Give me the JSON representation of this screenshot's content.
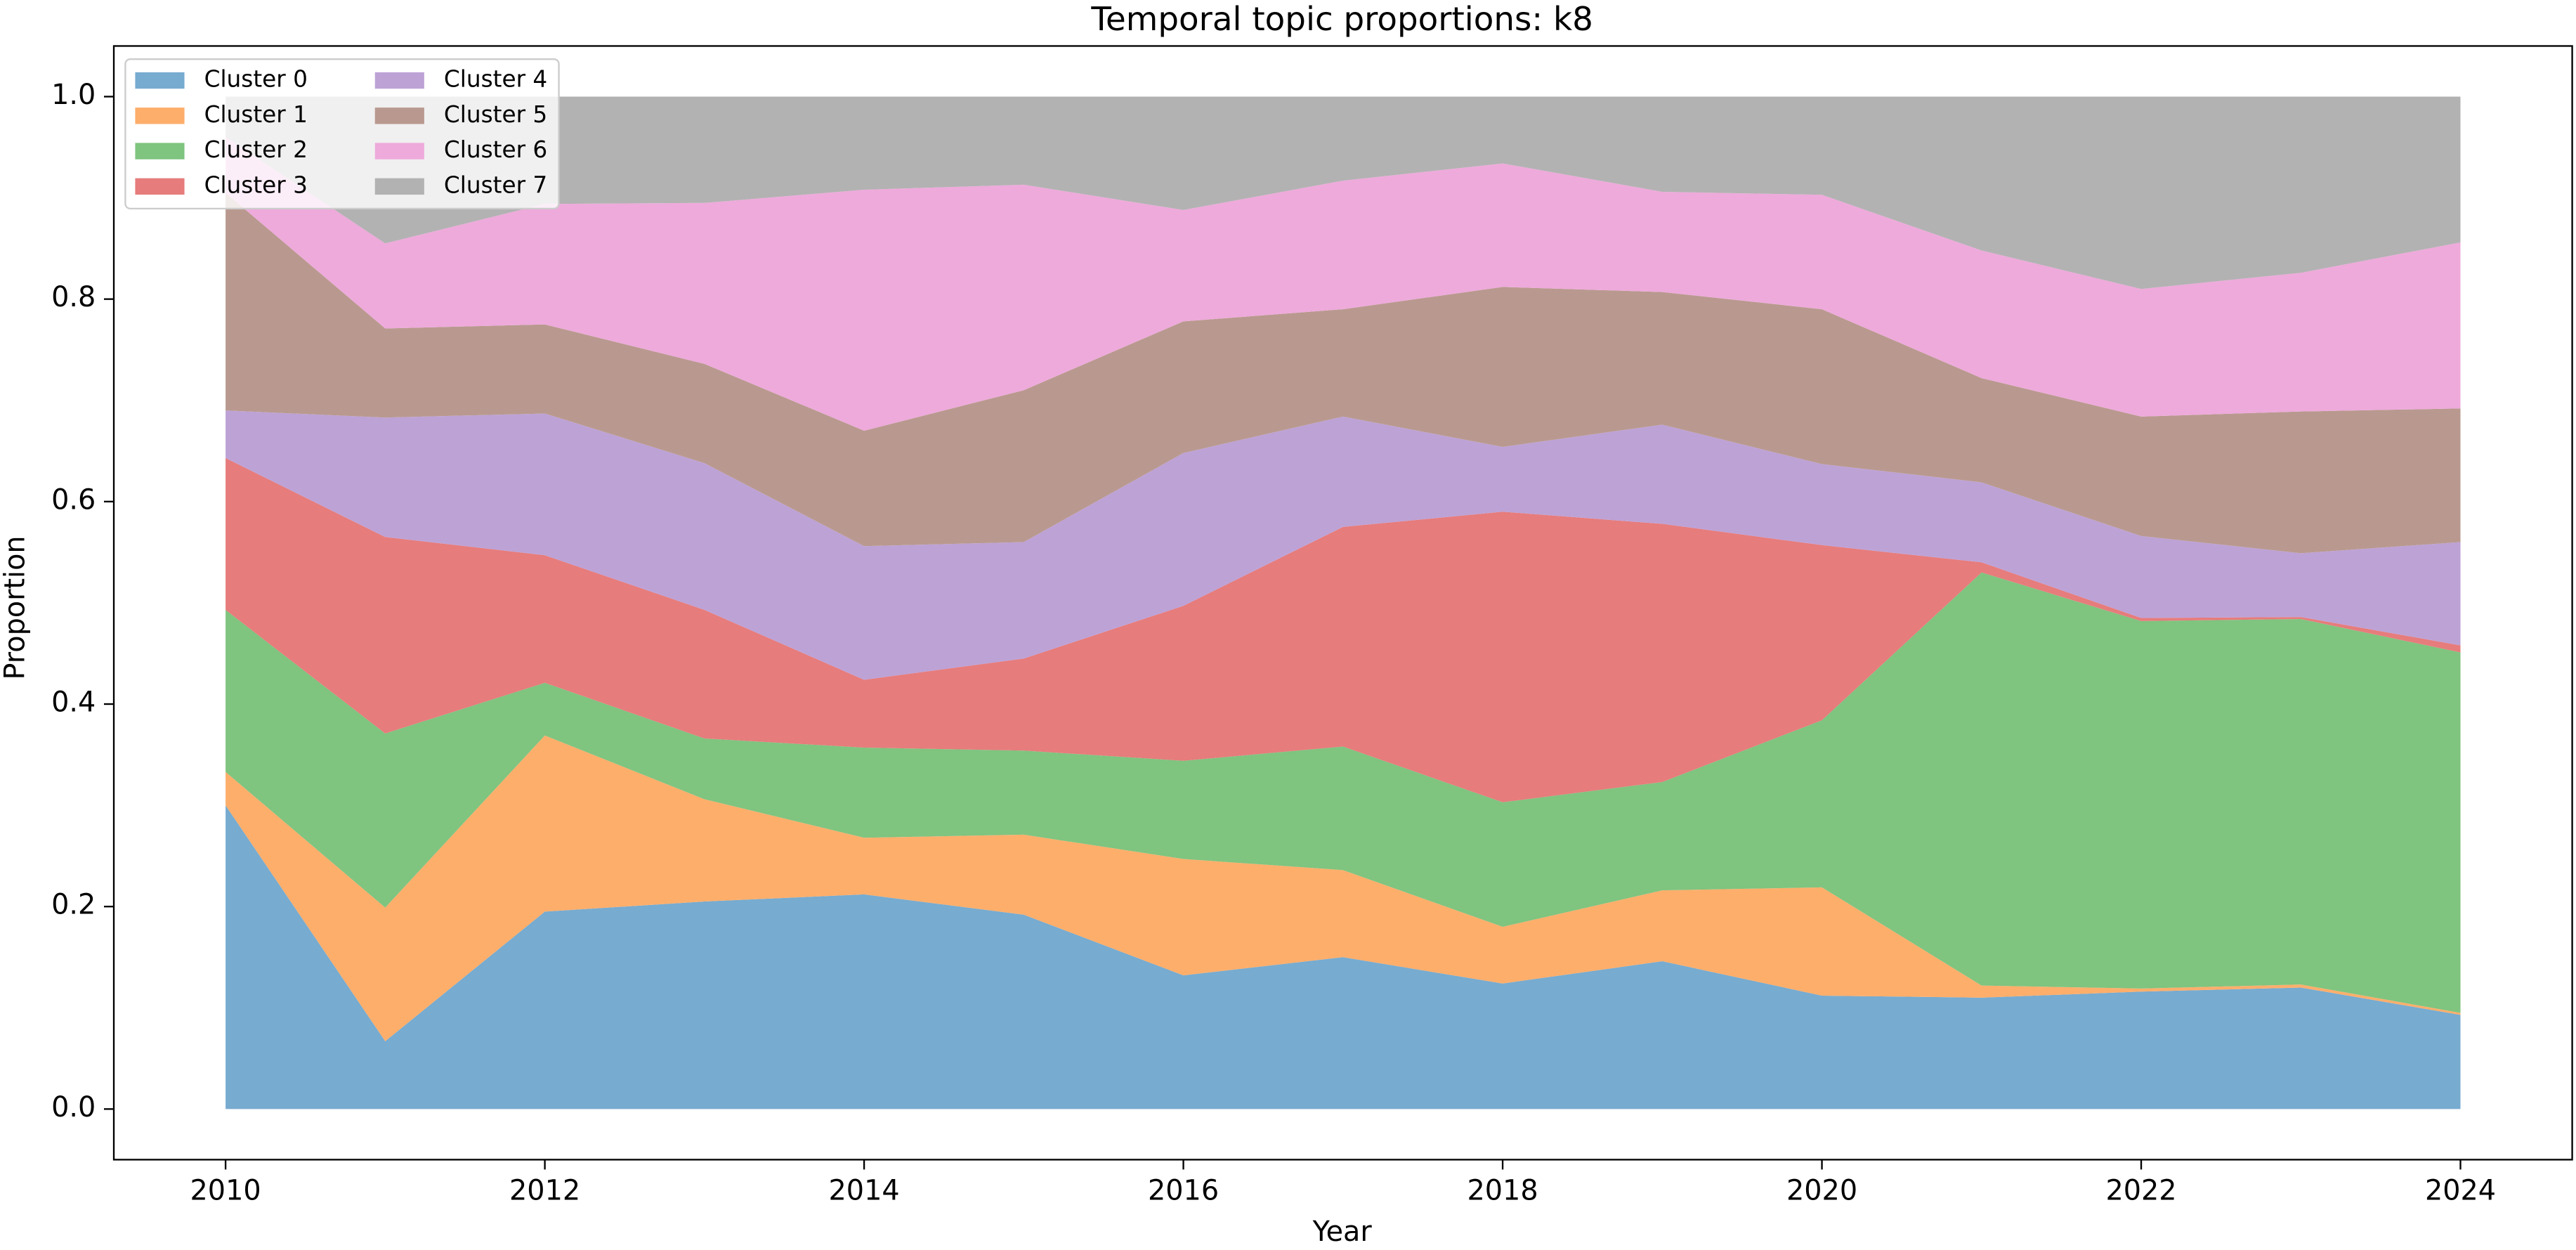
{
  "chart_data": {
    "type": "stacked-area",
    "title": "Temporal topic proportions: k8",
    "x_label": "Year",
    "y_label": "Proportion",
    "x": [
      2010,
      2011,
      2012,
      2013,
      2014,
      2015,
      2016,
      2017,
      2018,
      2019,
      2020,
      2021,
      2022,
      2023,
      2024
    ],
    "series": [
      {
        "name": "Cluster 0",
        "color": "#77abd0",
        "values": [
          0.3,
          0.067,
          0.195,
          0.205,
          0.212,
          0.192,
          0.132,
          0.15,
          0.124,
          0.146,
          0.112,
          0.11,
          0.116,
          0.12,
          0.093
        ]
      },
      {
        "name": "Cluster 1",
        "color": "#fdae6b",
        "values": [
          0.033,
          0.132,
          0.174,
          0.101,
          0.056,
          0.079,
          0.115,
          0.086,
          0.056,
          0.07,
          0.107,
          0.012,
          0.003,
          0.003,
          0.002
        ]
      },
      {
        "name": "Cluster 2",
        "color": "#7fc47f",
        "values": [
          0.16,
          0.172,
          0.052,
          0.06,
          0.089,
          0.083,
          0.097,
          0.122,
          0.123,
          0.107,
          0.165,
          0.408,
          0.363,
          0.361,
          0.356
        ]
      },
      {
        "name": "Cluster 3",
        "color": "#e67c7c",
        "values": [
          0.15,
          0.194,
          0.126,
          0.127,
          0.067,
          0.091,
          0.153,
          0.217,
          0.287,
          0.255,
          0.173,
          0.01,
          0.003,
          0.002,
          0.007
        ]
      },
      {
        "name": "Cluster 4",
        "color": "#bda2d6",
        "values": [
          0.047,
          0.118,
          0.14,
          0.145,
          0.132,
          0.115,
          0.151,
          0.109,
          0.064,
          0.098,
          0.08,
          0.079,
          0.081,
          0.063,
          0.102
        ]
      },
      {
        "name": "Cluster 5",
        "color": "#b9998f",
        "values": [
          0.215,
          0.088,
          0.088,
          0.098,
          0.114,
          0.15,
          0.13,
          0.106,
          0.158,
          0.131,
          0.153,
          0.103,
          0.118,
          0.14,
          0.132
        ]
      },
      {
        "name": "Cluster 6",
        "color": "#eeaadb",
        "values": [
          0.055,
          0.084,
          0.119,
          0.159,
          0.238,
          0.203,
          0.11,
          0.127,
          0.122,
          0.099,
          0.113,
          0.126,
          0.126,
          0.137,
          0.164
        ]
      },
      {
        "name": "Cluster 7",
        "color": "#b2b2b2",
        "values": [
          0.04,
          0.145,
          0.106,
          0.105,
          0.092,
          0.087,
          0.112,
          0.083,
          0.066,
          0.094,
          0.097,
          0.152,
          0.19,
          0.174,
          0.144
        ]
      }
    ],
    "xlim": [
      2009.3,
      2024.7
    ],
    "xticks": [
      2010,
      2012,
      2014,
      2016,
      2018,
      2020,
      2022,
      2024
    ],
    "ylim": [
      -0.05,
      1.05
    ],
    "yticks": [
      {
        "value": 0,
        "label": "0.0"
      },
      {
        "value": 0.2,
        "label": "0.2"
      },
      {
        "value": 0.4,
        "label": "0.4"
      },
      {
        "value": 0.6,
        "label": "0.6"
      },
      {
        "value": 0.8,
        "label": "0.8"
      },
      {
        "value": 1.0,
        "label": "1.0"
      }
    ],
    "grid": false,
    "legend": "upper left"
  }
}
